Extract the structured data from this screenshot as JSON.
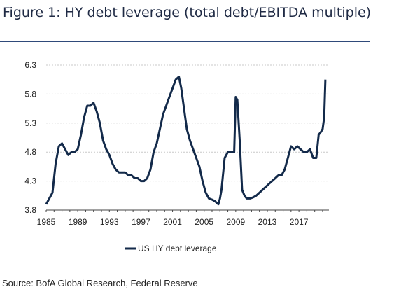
{
  "figure": {
    "title": "Figure 1: HY debt leverage (total debt/EBITDA multiple)",
    "source": "Source: BofA Global Research, Federal Reserve"
  },
  "colors": {
    "line": "#132a4a",
    "grid": "#c8c8c8",
    "title_rule": "#2f4a7a"
  },
  "chart_data": {
    "type": "line",
    "title": "Figure 1: HY debt leverage (total debt/EBITDA multiple)",
    "xlabel": "",
    "ylabel": "",
    "xlim": [
      1985,
      2020.8
    ],
    "ylim": [
      3.8,
      6.3
    ],
    "x_ticks": [
      "1985",
      "1989",
      "1993",
      "1997",
      "2001",
      "2005",
      "2009",
      "2013",
      "2017"
    ],
    "y_ticks": [
      "3.8",
      "4.3",
      "4.8",
      "5.3",
      "5.8",
      "6.3"
    ],
    "grid": true,
    "legend": "bottom",
    "series": [
      {
        "name": "US HY debt leverage",
        "x": [
          1985.0,
          1985.4,
          1985.8,
          1986.2,
          1986.6,
          1987.0,
          1987.4,
          1987.8,
          1988.2,
          1988.6,
          1989.0,
          1989.4,
          1989.8,
          1990.2,
          1990.6,
          1991.0,
          1991.4,
          1991.8,
          1992.2,
          1992.6,
          1993.0,
          1993.4,
          1993.8,
          1994.2,
          1994.6,
          1995.0,
          1995.4,
          1995.8,
          1996.2,
          1996.6,
          1997.0,
          1997.4,
          1997.8,
          1998.2,
          1998.6,
          1999.0,
          1999.4,
          1999.8,
          2000.2,
          2000.6,
          2001.0,
          2001.4,
          2001.8,
          2002.1,
          2002.4,
          2002.8,
          2003.2,
          2003.6,
          2004.0,
          2004.4,
          2004.8,
          2005.2,
          2005.6,
          2006.0,
          2006.4,
          2006.8,
          2007.0,
          2007.2,
          2007.6,
          2008.0,
          2008.4,
          2008.8,
          2009.0,
          2009.2,
          2009.5,
          2009.8,
          2010.1,
          2010.4,
          2010.8,
          2011.2,
          2011.6,
          2012.0,
          2012.4,
          2012.8,
          2013.2,
          2013.6,
          2014.0,
          2014.4,
          2014.8,
          2015.2,
          2015.6,
          2016.0,
          2016.4,
          2016.8,
          2017.2,
          2017.6,
          2018.0,
          2018.4,
          2018.8,
          2019.2,
          2019.5,
          2019.8,
          2020.0,
          2020.2,
          2020.35
        ],
        "values": [
          3.9,
          4.0,
          4.1,
          4.6,
          4.9,
          4.95,
          4.85,
          4.75,
          4.8,
          4.8,
          4.85,
          5.1,
          5.4,
          5.6,
          5.6,
          5.65,
          5.5,
          5.3,
          5.0,
          4.85,
          4.75,
          4.6,
          4.5,
          4.45,
          4.45,
          4.45,
          4.4,
          4.4,
          4.35,
          4.35,
          4.3,
          4.3,
          4.35,
          4.5,
          4.8,
          4.95,
          5.2,
          5.45,
          5.6,
          5.75,
          5.9,
          6.05,
          6.1,
          5.9,
          5.6,
          5.2,
          5.0,
          4.85,
          4.7,
          4.55,
          4.3,
          4.1,
          4.0,
          3.98,
          3.95,
          3.9,
          4.0,
          4.15,
          4.7,
          4.8,
          4.8,
          4.8,
          5.75,
          5.7,
          5.0,
          4.15,
          4.05,
          4.0,
          4.0,
          4.02,
          4.05,
          4.1,
          4.15,
          4.2,
          4.25,
          4.3,
          4.35,
          4.4,
          4.4,
          4.5,
          4.7,
          4.9,
          4.85,
          4.9,
          4.85,
          4.8,
          4.8,
          4.85,
          4.7,
          4.7,
          5.1,
          5.15,
          5.2,
          5.4,
          6.05
        ]
      }
    ]
  }
}
